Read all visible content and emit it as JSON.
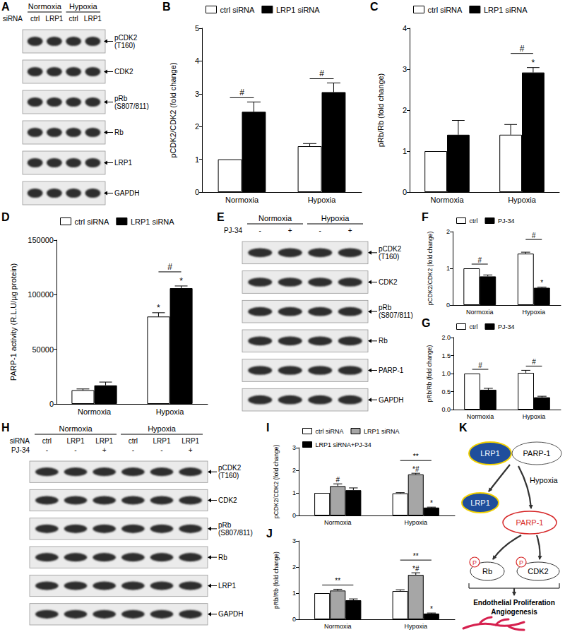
{
  "panel_labels": [
    "A",
    "B",
    "C",
    "D",
    "E",
    "F",
    "G",
    "H",
    "I",
    "J",
    "K"
  ],
  "blots": [
    {
      "groups": [
        "Normoxia",
        "Hypoxia"
      ],
      "lane_rows": [
        {
          "name": "siRNA",
          "labels": [
            "ctrl",
            "LRP1",
            "ctrl",
            "LRP1"
          ]
        }
      ],
      "bands": [
        [
          "pCDK2",
          "(T160)"
        ],
        [
          "CDK2"
        ],
        [
          "pRb",
          "(S807/811)"
        ],
        [
          "Rb"
        ],
        [
          "LRP1"
        ],
        [
          "GAPDH"
        ]
      ]
    },
    {
      "groups": [
        "Normoxia",
        "Hypoxia"
      ],
      "lane_rows": [
        {
          "name": "PJ-34",
          "labels": [
            "-",
            "+",
            "-",
            "+"
          ]
        }
      ],
      "bands": [
        [
          "pCDK2",
          "(T160)"
        ],
        [
          "CDK2"
        ],
        [
          "pRb",
          "(S807/811)"
        ],
        [
          "Rb"
        ],
        [
          "PARP-1"
        ],
        [
          "GAPDH"
        ]
      ]
    },
    {
      "groups": [
        "Normoxia",
        "Hypoxia"
      ],
      "lane_rows": [
        {
          "name": "siRNA",
          "labels": [
            "ctrl",
            "LRP1",
            "LRP1",
            "ctrl",
            "LRP1",
            "LRP1"
          ]
        },
        {
          "name": "PJ-34",
          "labels": [
            "-",
            "-",
            "+",
            "-",
            "-",
            "+"
          ]
        }
      ],
      "bands": [
        [
          "pCDK2",
          "(T160)"
        ],
        [
          "CDK2"
        ],
        [
          "pRb",
          "(S807/811)"
        ],
        [
          "Rb"
        ],
        [
          "LRP1"
        ],
        [
          "GAPDH"
        ]
      ]
    }
  ],
  "chart_data": [
    {
      "type": "bar",
      "y_label": "pCDK2/CDK2 (fold change)",
      "categories": [
        "Normoxia",
        "Hypoxia"
      ],
      "series": [
        {
          "name": "ctrl siRNA",
          "color": "#ffffff",
          "values": [
            1,
            1.4
          ],
          "errors": [
            null,
            0.08
          ]
        },
        {
          "name": "LRP1 siRNA",
          "color": "#000000",
          "values": [
            2.45,
            3.05
          ],
          "errors": [
            0.3,
            0.28
          ]
        }
      ],
      "ylim": [
        0,
        5
      ],
      "yticks": [
        0,
        1,
        2,
        3,
        4,
        5
      ],
      "grid": false,
      "legend": "top-left",
      "annotations": [
        {
          "text": "#",
          "category": "Normoxia",
          "span": [
            0,
            1
          ]
        },
        {
          "text": "#",
          "category": "Hypoxia",
          "span": [
            0,
            1
          ]
        }
      ]
    },
    {
      "type": "bar",
      "y_label": "pRb/Rb (fold change)",
      "categories": [
        "Normoxia",
        "Hypoxia"
      ],
      "series": [
        {
          "name": "ctrl siRNA",
          "color": "#ffffff",
          "values": [
            1,
            1.4
          ],
          "errors": [
            null,
            0.25
          ]
        },
        {
          "name": "LRP1 siRNA",
          "color": "#000000",
          "values": [
            1.4,
            2.92
          ],
          "errors": [
            0.35,
            0.12
          ]
        }
      ],
      "ylim": [
        0,
        4
      ],
      "yticks": [
        0,
        1,
        2,
        3,
        4
      ],
      "grid": false,
      "legend": "top-left",
      "annotations": [
        {
          "text": "#",
          "category": "Hypoxia",
          "span": [
            0,
            1
          ]
        },
        {
          "text": "*",
          "category": "Hypoxia",
          "series": 1
        }
      ]
    },
    {
      "type": "bar",
      "y_label": "PARP-1 activity (R.L.U/µg protein)",
      "categories": [
        "Normoxia",
        "Hypoxia"
      ],
      "series": [
        {
          "name": "ctrl siRNA",
          "color": "#ffffff",
          "values": [
            12500,
            80000
          ],
          "errors": [
            1200,
            3500
          ]
        },
        {
          "name": "LRP1 siRNA",
          "color": "#000000",
          "values": [
            17000,
            106000
          ],
          "errors": [
            3000,
            2000
          ]
        }
      ],
      "ylim": [
        0,
        150000
      ],
      "yticks": [
        0,
        50000,
        100000,
        150000
      ],
      "grid": false,
      "legend": "top-left",
      "annotations": [
        {
          "text": "#",
          "category": "Hypoxia",
          "span": [
            0,
            1
          ]
        },
        {
          "text": "*",
          "category": "Hypoxia",
          "series": 0
        },
        {
          "text": "*",
          "category": "Hypoxia",
          "series": 1
        }
      ]
    },
    {
      "type": "bar",
      "y_label": "pCDK2/CDK2 (fold change)",
      "categories": [
        "Normoxia",
        "Hypoxia"
      ],
      "series": [
        {
          "name": "ctrl",
          "color": "#ffffff",
          "values": [
            1,
            1.4
          ],
          "errors": [
            null,
            0.04
          ]
        },
        {
          "name": "PJ-34",
          "color": "#000000",
          "values": [
            0.78,
            0.47
          ],
          "errors": [
            0.04,
            0.02
          ]
        }
      ],
      "ylim": [
        0,
        2
      ],
      "yticks": [
        0,
        1,
        2
      ],
      "grid": false,
      "legend": "top-left",
      "annotations": [
        {
          "text": "#",
          "category": "Normoxia",
          "span": [
            0,
            1
          ]
        },
        {
          "text": "#",
          "category": "Hypoxia",
          "span": [
            0,
            1
          ]
        },
        {
          "text": "*",
          "category": "Hypoxia",
          "series": 1
        }
      ]
    },
    {
      "type": "bar",
      "y_label": "pRb/Rb (fold change)",
      "categories": [
        "Normoxia",
        "Hypoxia"
      ],
      "series": [
        {
          "name": "ctrl",
          "color": "#ffffff",
          "values": [
            1,
            1.02
          ],
          "errors": [
            null,
            0.07
          ]
        },
        {
          "name": "PJ-34",
          "color": "#000000",
          "values": [
            0.55,
            0.34
          ],
          "errors": [
            0.04,
            0.03
          ]
        }
      ],
      "ylim": [
        0,
        2
      ],
      "yticks": [
        {
          "value": 0,
          "label": "0.0"
        },
        {
          "value": 0.5,
          "label": "0.5"
        },
        {
          "value": 1,
          "label": "1.0"
        },
        {
          "value": 1.5,
          "label": "1.5"
        },
        {
          "value": 2,
          "label": "2.0"
        }
      ],
      "grid": false,
      "legend": "top-left",
      "annotations": [
        {
          "text": "#",
          "category": "Normoxia",
          "span": [
            0,
            1
          ]
        },
        {
          "text": "#",
          "category": "Hypoxia",
          "span": [
            0,
            1
          ]
        }
      ]
    },
    {
      "type": "bar",
      "y_label": "pCDK2/CDK2 (fold change)",
      "categories": [
        "Normoxia",
        "Hypoxia"
      ],
      "series": [
        {
          "name": "ctrl siRNA",
          "color": "#ffffff",
          "values": [
            1,
            0.98
          ],
          "errors": [
            null,
            0.03
          ]
        },
        {
          "name": "LRP1 siRNA",
          "color": "#a6a6a6",
          "values": [
            1.3,
            1.82
          ],
          "errors": [
            0.1,
            0.05
          ]
        },
        {
          "name": "LRP1 siRNA+PJ-34",
          "color": "#000000",
          "values": [
            1.12,
            0.35
          ],
          "errors": [
            0.1,
            0.02
          ]
        }
      ],
      "ylim": [
        0,
        3
      ],
      "yticks": [
        0,
        1,
        2,
        3
      ],
      "grid": false,
      "legend": "top-left",
      "annotations": [
        {
          "text": "#",
          "category": "Normoxia",
          "series": 1
        },
        {
          "text": "*#",
          "category": "Hypoxia",
          "series": 1
        },
        {
          "text": "*",
          "category": "Hypoxia",
          "series": 2
        },
        {
          "text": "**",
          "category": "Hypoxia",
          "span": [
            0,
            2
          ]
        }
      ]
    },
    {
      "type": "bar",
      "y_label": "pRb/Rb (fold change)",
      "categories": [
        "Normoxia",
        "Hypoxia"
      ],
      "series": [
        {
          "color": "#ffffff",
          "values": [
            1,
            1.08
          ],
          "errors": [
            null,
            0.05
          ]
        },
        {
          "color": "#a6a6a6",
          "values": [
            1.1,
            1.7
          ],
          "errors": [
            0.05,
            0.08
          ]
        },
        {
          "color": "#000000",
          "values": [
            0.73,
            0.22
          ],
          "errors": [
            0.05,
            0.02
          ]
        }
      ],
      "ylim": [
        0,
        3
      ],
      "yticks": [
        0,
        1,
        2,
        3
      ],
      "grid": false,
      "annotations": [
        {
          "text": "**",
          "category": "Normoxia",
          "span": [
            0,
            2
          ]
        },
        {
          "text": "*#",
          "category": "Hypoxia",
          "series": 1
        },
        {
          "text": "*",
          "category": "Hypoxia",
          "series": 2
        },
        {
          "text": "**",
          "category": "Hypoxia",
          "span": [
            0,
            2
          ]
        }
      ]
    }
  ],
  "diagram": {
    "complex": [
      "LRP1",
      "PARP-1"
    ],
    "trigger": "Hypoxia",
    "released": "LRP1",
    "activated": "PARP-1",
    "targets": [
      {
        "label": "Rb",
        "mark": "P"
      },
      {
        "label": "CDK2",
        "mark": "P"
      }
    ],
    "outcome": [
      "Endothelial Proliferation",
      "Angiogenesis"
    ]
  }
}
